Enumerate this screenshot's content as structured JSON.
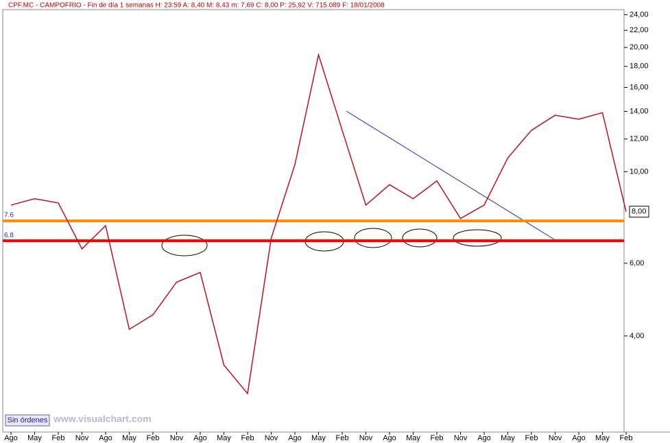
{
  "chart_data": {
    "type": "line",
    "title": "CPF.MC - CAMPOFRIO - Fin de día 1 semanas H: 23:59  A: 8,40  M: 8,43  m: 7,69  C: 8,00  P: 25,92  V: 715.089  F: 18/01/2008",
    "categories": [
      "Ago",
      "May",
      "Feb",
      "Nov",
      "Ago",
      "May",
      "Feb",
      "Nov",
      "Ago",
      "May",
      "Feb",
      "Nov",
      "Ago",
      "May",
      "Feb",
      "Nov",
      "Ago",
      "May",
      "Feb",
      "Nov",
      "Ago",
      "May",
      "Feb",
      "Nov",
      "Ago",
      "May",
      "Feb"
    ],
    "values": [
      8.3,
      8.6,
      8.4,
      6.5,
      7.4,
      4.15,
      4.5,
      5.4,
      5.7,
      3.4,
      2.9,
      6.9,
      10.4,
      19.2,
      12.6,
      8.3,
      9.3,
      8.6,
      9.5,
      7.7,
      8.3,
      10.8,
      12.6,
      13.7,
      13.4,
      13.9,
      8.0
    ],
    "color": "#c0101a",
    "log_scale": true,
    "ylim": [
      2.34,
      24.7
    ],
    "yticks": [
      {
        "value": 4,
        "label": "4,00"
      },
      {
        "value": 6,
        "label": "6,00"
      },
      {
        "value": 10,
        "label": "10,00"
      },
      {
        "value": 12,
        "label": "12,00"
      },
      {
        "value": 14,
        "label": "14,00"
      },
      {
        "value": 16,
        "label": "16,00"
      },
      {
        "value": 18,
        "label": "18,00"
      },
      {
        "value": 20,
        "label": "20,00"
      },
      {
        "value": 22,
        "label": "22,00"
      },
      {
        "value": 24,
        "label": "24,00"
      }
    ],
    "hlines": [
      {
        "value": 7.6,
        "color": "#ff8c00"
      },
      {
        "value": 6.8,
        "color": "#ff0000"
      }
    ],
    "last_value": {
      "value": 8,
      "label": "8,00"
    }
  },
  "footer": {
    "button": "Sin órdenes",
    "watermark": "www.visualchart.com"
  }
}
